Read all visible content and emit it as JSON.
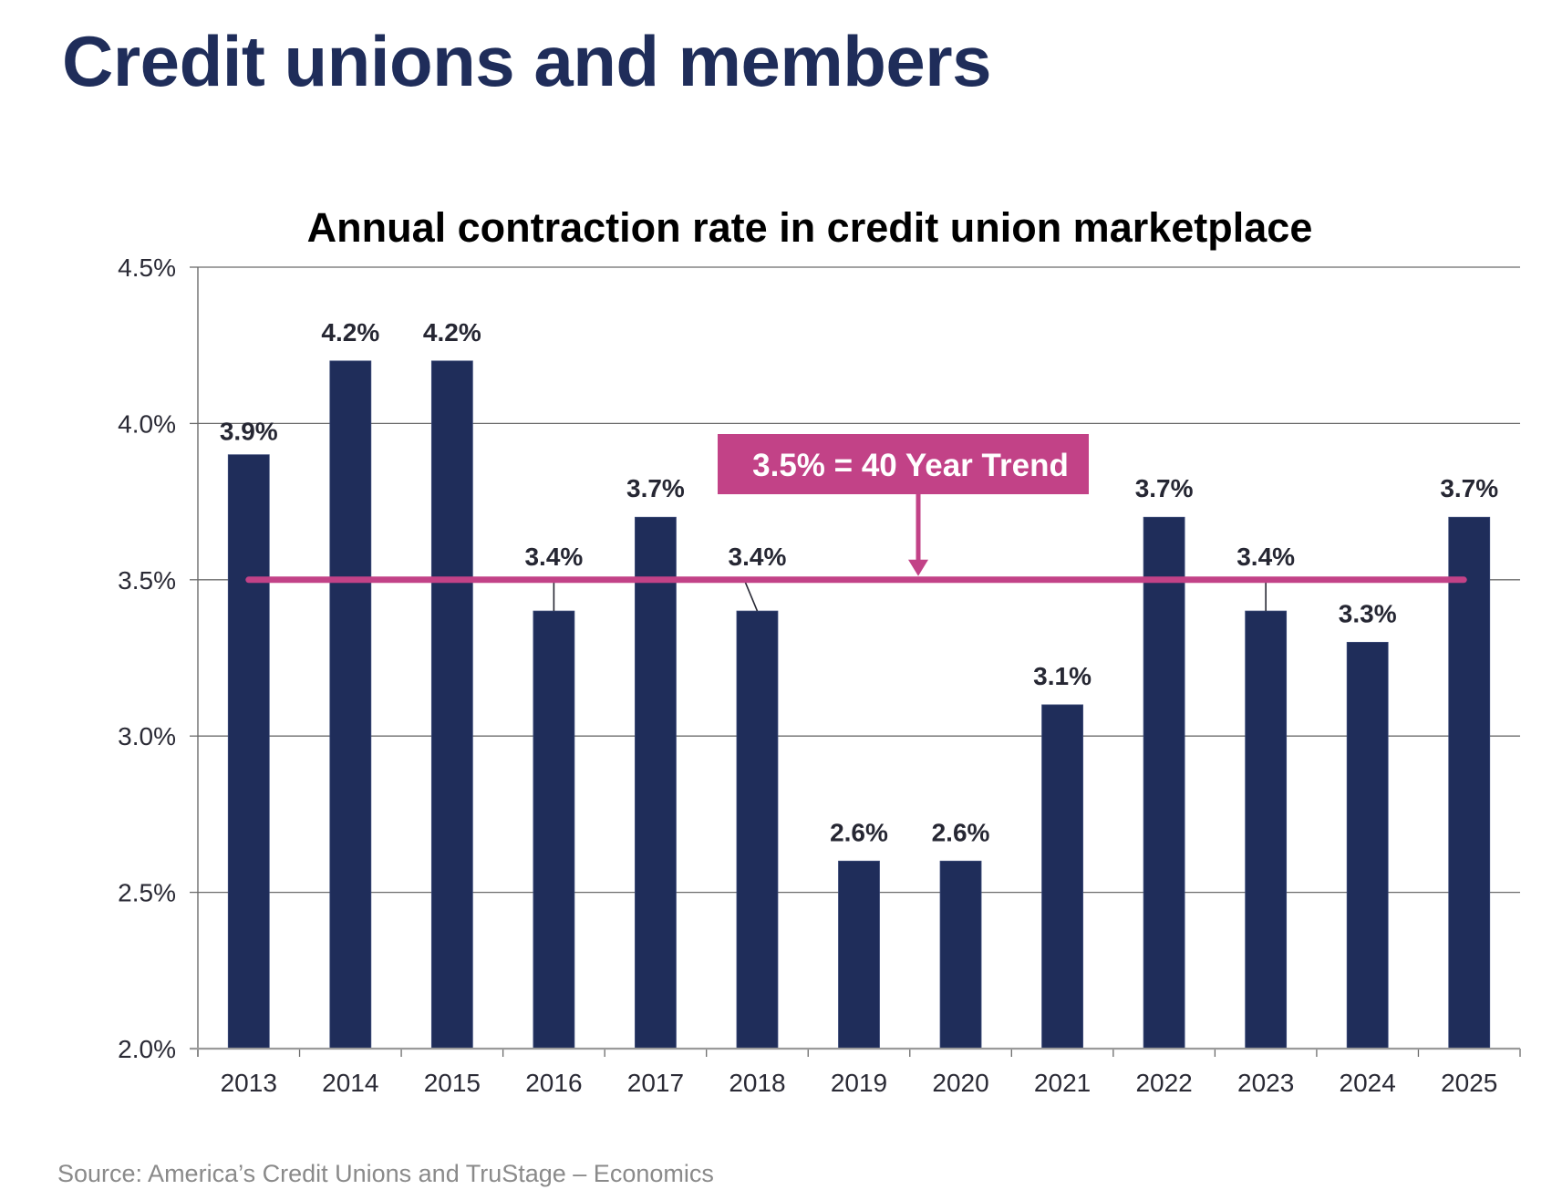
{
  "slide": {
    "title": "Credit unions and members",
    "source": "Source: America’s Credit Unions and TruStage – Economics"
  },
  "colors": {
    "title": "#1f2d5a",
    "bar": "#1f2d5a",
    "trend": "#c24287",
    "grid": "#6b6b6b",
    "source": "#8a8a8a"
  },
  "chart_data": {
    "type": "bar",
    "title": "Annual contraction rate in credit union marketplace",
    "xlabel": "",
    "ylabel": "",
    "ylim": [
      2.0,
      4.5
    ],
    "grid": true,
    "yticks": [
      {
        "value": 2.0,
        "label": "2.0%"
      },
      {
        "value": 2.5,
        "label": "2.5%"
      },
      {
        "value": 3.0,
        "label": "3.0%"
      },
      {
        "value": 3.5,
        "label": "3.5%"
      },
      {
        "value": 4.0,
        "label": "4.0%"
      },
      {
        "value": 4.5,
        "label": "4.5%"
      }
    ],
    "categories": [
      "2013",
      "2014",
      "2015",
      "2016",
      "2017",
      "2018",
      "2019",
      "2020",
      "2021",
      "2022",
      "2023",
      "2024",
      "2025"
    ],
    "values": [
      3.9,
      4.2,
      4.2,
      3.4,
      3.7,
      3.4,
      2.6,
      2.6,
      3.1,
      3.7,
      3.4,
      3.3,
      3.7
    ],
    "labels": [
      "3.9%",
      "4.2%",
      "4.2%",
      "3.4%",
      "3.7%",
      "3.4%",
      "2.6%",
      "2.6%",
      "3.1%",
      "3.7%",
      "3.4%",
      "3.3%",
      "3.7%"
    ],
    "leader_lines": [
      false,
      false,
      false,
      true,
      false,
      true,
      false,
      false,
      false,
      false,
      true,
      false,
      false
    ],
    "reference_line": {
      "value": 3.5,
      "label": "3.5% = 40 Year Trend"
    }
  }
}
